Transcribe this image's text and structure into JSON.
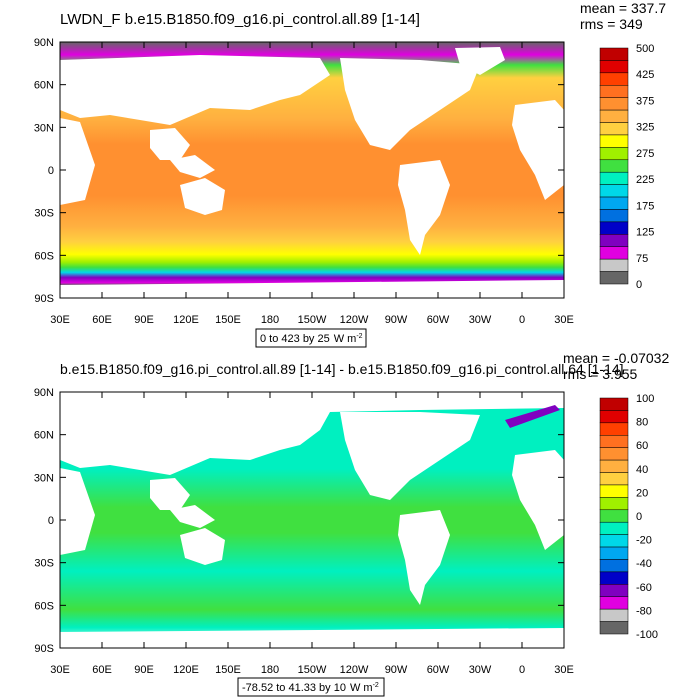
{
  "panels": [
    {
      "title": "LWDN_F b.e15.B1850.f09_g16.pi_control.all.89 [1-14]",
      "stats": [
        "mean = 337.7",
        "rms = 349"
      ],
      "lat_labels": [
        "90N",
        "60N",
        "30N",
        "0",
        "30S",
        "60S",
        "90S"
      ],
      "lon_labels": [
        "30E",
        "60E",
        "90E",
        "120E",
        "150E",
        "180",
        "150W",
        "120W",
        "90W",
        "60W",
        "30W",
        "0",
        "30E"
      ],
      "range_text": "0 to 423 by 25",
      "units_text": "W m",
      "units_exp": "-2",
      "colorbar": {
        "colors": [
          "#666666",
          "#c8c8c8",
          "#e000e0",
          "#8000c0",
          "#0000c8",
          "#0070e0",
          "#00a8f0",
          "#00d8e8",
          "#00f0c0",
          "#40e040",
          "#a0f000",
          "#ffff00",
          "#ffd040",
          "#ffb040",
          "#ff9030",
          "#ff7020",
          "#ff4000",
          "#e00000",
          "#c00000"
        ],
        "labels": [
          "0",
          "75",
          "125",
          "175",
          "225",
          "275",
          "325",
          "375",
          "425",
          "500"
        ]
      }
    },
    {
      "title": "b.e15.B1850.f09_g16.pi_control.all.89 [1-14] - b.e15.B1850.f09_g16.pi_control.all.64 [1-14]",
      "stats": [
        "mean = -0.07032",
        "rms = 3.955"
      ],
      "lat_labels": [
        "90N",
        "60N",
        "30N",
        "0",
        "30S",
        "60S",
        "90S"
      ],
      "lon_labels": [
        "30E",
        "60E",
        "90E",
        "120E",
        "150E",
        "180",
        "150W",
        "120W",
        "90W",
        "60W",
        "30W",
        "0",
        "30E"
      ],
      "range_text": "-78.52 to 41.33 by 10",
      "units_text": "W m",
      "units_exp": "-2",
      "colorbar": {
        "colors": [
          "#666666",
          "#c8c8c8",
          "#e000e0",
          "#8000c0",
          "#0000c8",
          "#0070e0",
          "#00a8f0",
          "#00d8e8",
          "#00f0c0",
          "#40e040",
          "#a0f000",
          "#ffff00",
          "#ffd040",
          "#ffb040",
          "#ff9030",
          "#ff7020",
          "#ff4000",
          "#e00000",
          "#c00000"
        ],
        "labels": [
          "-100",
          "-80",
          "-60",
          "-40",
          "-20",
          "0",
          "20",
          "40",
          "60",
          "80",
          "100"
        ]
      }
    }
  ]
}
